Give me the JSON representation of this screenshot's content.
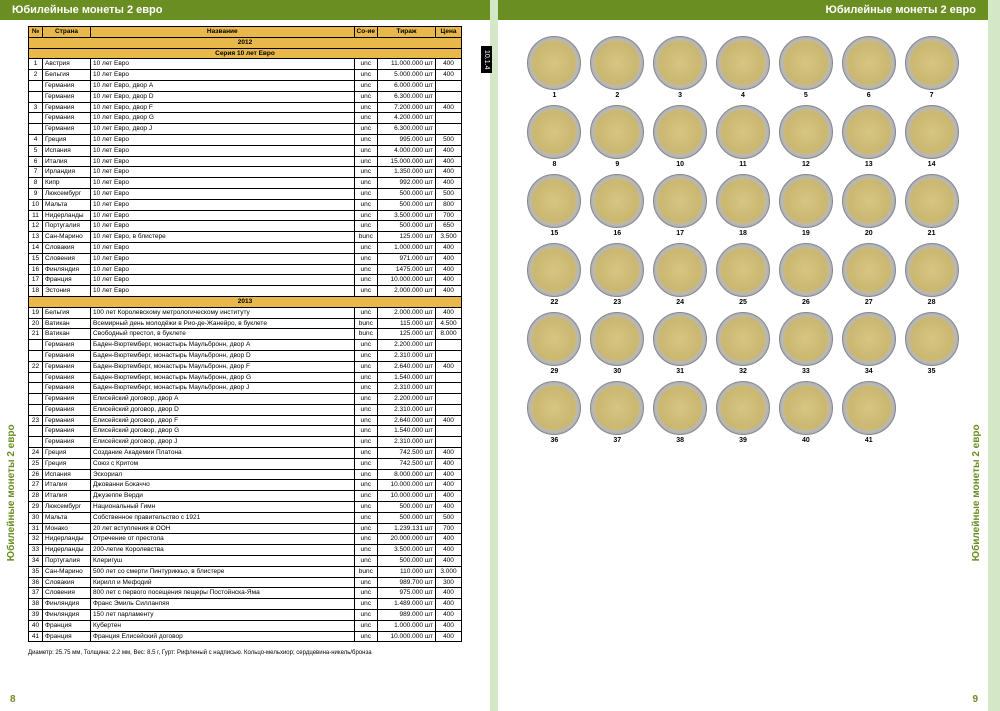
{
  "header_title": "Юбилейные монеты 2 евро",
  "side_label": "Юбилейные монеты 2 евро",
  "tab": "10.1.4",
  "page_left": "8",
  "page_right": "9",
  "footer": "Диаметр: 25.75 мм, Толщина: 2.2 мм, Вес: 8.5 г, Гурт: Рифленый с надписью. Кольцо-мельхиор; сердцевина-никель/бронза",
  "columns": [
    "№",
    "Страна",
    "Название",
    "Со-ие",
    "Тираж",
    "Цена"
  ],
  "years": {
    "2012": {
      "series": "Серия 10 лет Евро",
      "rows": [
        [
          "1",
          "Австрия",
          "10 лет Евро",
          "unc",
          "11.000.000 шт",
          "400"
        ],
        [
          "2",
          "Бельгия",
          "10 лет Евро",
          "unc",
          "5.000.000 шт",
          "400"
        ],
        [
          "",
          "Германия",
          "10 лет Евро, двор A",
          "unc",
          "6.000.000 шт",
          ""
        ],
        [
          "",
          "Германия",
          "10 лет Евро, двор D",
          "unc",
          "6.300.000 шт",
          ""
        ],
        [
          "3",
          "Германия",
          "10 лет Евро, двор F",
          "unc",
          "7.200.000 шт",
          "400"
        ],
        [
          "",
          "Германия",
          "10 лет Евро, двор G",
          "unc",
          "4.200.000 шт",
          ""
        ],
        [
          "",
          "Германия",
          "10 лет Евро, двор J",
          "unc",
          "6.300.000 шт",
          ""
        ],
        [
          "4",
          "Греция",
          "10 лет Евро",
          "unc",
          "995.000 шт",
          "500"
        ],
        [
          "5",
          "Испания",
          "10 лет Евро",
          "unc",
          "4.000.000 шт",
          "400"
        ],
        [
          "6",
          "Италия",
          "10 лет Евро",
          "unc",
          "15.000.000 шт",
          "400"
        ],
        [
          "7",
          "Ирландия",
          "10 лет Евро",
          "unc",
          "1.350.000 шт",
          "400"
        ],
        [
          "8",
          "Кипр",
          "10 лет Евро",
          "unc",
          "992.000 шт",
          "400"
        ],
        [
          "9",
          "Люксембург",
          "10 лет Евро",
          "unc",
          "500.000 шт",
          "500"
        ],
        [
          "10",
          "Мальта",
          "10 лет Евро",
          "unc",
          "500.000 шт",
          "800"
        ],
        [
          "11",
          "Нидерланды",
          "10 лет Евро",
          "unc",
          "3.500.000 шт",
          "700"
        ],
        [
          "12",
          "Португалия",
          "10 лет Евро",
          "unc",
          "500.000 шт",
          "650"
        ],
        [
          "13",
          "Сан-Марино",
          "10 лет Евро, в блистере",
          "bunc",
          "125.000 шт",
          "3.500"
        ],
        [
          "14",
          "Словакия",
          "10 лет Евро",
          "unc",
          "1.000.000 шт",
          "400"
        ],
        [
          "15",
          "Словения",
          "10 лет Евро",
          "unc",
          "971.000 шт",
          "400"
        ],
        [
          "16",
          "Финляндия",
          "10 лет Евро",
          "unc",
          "1475.000 шт",
          "400"
        ],
        [
          "17",
          "Франция",
          "10 лет Евро",
          "unc",
          "10.000.000 шт",
          "400"
        ],
        [
          "18",
          "Эстония",
          "10 лет Евро",
          "unc",
          "2.000.000 шт",
          "400"
        ]
      ]
    },
    "2013": {
      "series": null,
      "rows": [
        [
          "19",
          "Бельгия",
          "100 лет Королевскому метрологическому институту",
          "unc",
          "2.000.000 шт",
          "400"
        ],
        [
          "20",
          "Ватикан",
          "Всемирный день молодёжи в Рио-де-Жанейро, в буклете",
          "bunc",
          "115.000 шт",
          "4.500"
        ],
        [
          "21",
          "Ватикан",
          "Свободный престол, в буклете",
          "bunc",
          "125.000 шт",
          "8.000"
        ],
        [
          "",
          "Германия",
          "Баден-Вюртемберг, монастырь Маульбронн, двор A",
          "unc",
          "2.200.000 шт",
          ""
        ],
        [
          "",
          "Германия",
          "Баден-Вюртемберг, монастырь Маульбронн, двор D",
          "unc",
          "2.310.000 шт",
          ""
        ],
        [
          "22",
          "Германия",
          "Баден-Вюртемберг, монастырь Маульбронн, двор F",
          "unc",
          "2.640.000 шт",
          "400"
        ],
        [
          "",
          "Германия",
          "Баден-Вюртемберг, монастырь Маульбронн, двор G",
          "unc",
          "1.540.000 шт",
          ""
        ],
        [
          "",
          "Германия",
          "Баден-Вюртемберг, монастырь Маульбронн, двор J",
          "unc",
          "2.310.000 шт",
          ""
        ],
        [
          "",
          "Германия",
          "Елисейский договор, двор A",
          "unc",
          "2.200.000 шт",
          ""
        ],
        [
          "",
          "Германия",
          "Елисейский договор, двор D",
          "unc",
          "2.310.000 шт",
          ""
        ],
        [
          "23",
          "Германия",
          "Елисейский договор, двор F",
          "unc",
          "2.640.000 шт",
          "400"
        ],
        [
          "",
          "Германия",
          "Елисейский договор, двор G",
          "unc",
          "1.540.000 шт",
          ""
        ],
        [
          "",
          "Германия",
          "Елисейский договор, двор J",
          "unc",
          "2.310.000 шт",
          ""
        ],
        [
          "24",
          "Греция",
          "Создание Академии Платона",
          "unc",
          "742.500 шт",
          "400"
        ],
        [
          "25",
          "Греция",
          "Союз с Критом",
          "unc",
          "742.500 шт",
          "400"
        ],
        [
          "26",
          "Испания",
          "Эскориал",
          "unc",
          "8.000.000 шт",
          "400"
        ],
        [
          "27",
          "Италия",
          "Джованни Бокаччо",
          "unc",
          "10.000.000 шт",
          "400"
        ],
        [
          "28",
          "Италия",
          "Джузеппе Верди",
          "unc",
          "10.000.000 шт",
          "400"
        ],
        [
          "29",
          "Люксембург",
          "Национальный Гимн",
          "unc",
          "500.000 шт",
          "400"
        ],
        [
          "30",
          "Мальта",
          "Собственное правительство с 1921",
          "unc",
          "500.000 шт",
          "500"
        ],
        [
          "31",
          "Монако",
          "20 лет вступления в ООН",
          "unc",
          "1.239.131 шт",
          "700"
        ],
        [
          "32",
          "Нидерланды",
          "Отречение от престола",
          "unc",
          "20.000.000 шт",
          "400"
        ],
        [
          "33",
          "Нидерланды",
          "200-летие Королевства",
          "unc",
          "3.500.000 шт",
          "400"
        ],
        [
          "34",
          "Португалия",
          "Клеригуш",
          "unc",
          "500.000 шт",
          "400"
        ],
        [
          "35",
          "Сан-Марино",
          "500 лет со смерти Пинтуриккьо, в блистере",
          "bunc",
          "110.000 шт",
          "3.000"
        ],
        [
          "36",
          "Словакия",
          "Кирилл и Мефодий",
          "unc",
          "989.700 шт",
          "300"
        ],
        [
          "37",
          "Словения",
          "800 лет с первого посещения пещеры Постойнска-Яма",
          "unc",
          "975.000 шт",
          "400"
        ],
        [
          "38",
          "Финляндия",
          "Франс Эмиль Силланпяя",
          "unc",
          "1.489.000 шт",
          "400"
        ],
        [
          "39",
          "Финляндия",
          "150 лет парламенту",
          "unc",
          "989.000 шт",
          "400"
        ],
        [
          "40",
          "Франция",
          "Кубертен",
          "unc",
          "1.000.000 шт",
          "400"
        ],
        [
          "41",
          "Франция",
          "Франция Елисейский договор",
          "unc",
          "10.000.000 шт",
          "400"
        ]
      ]
    }
  },
  "coin_grid": {
    "rows": 6,
    "cols": 7,
    "count": 41,
    "skip_cells": [
      [
        5,
        6
      ]
    ]
  },
  "colors": {
    "page_bg": "#ffffff",
    "spread_bg": "#d4e8c7",
    "header": "#6b8e23",
    "th_bg": "#e8b84a",
    "border": "#000000"
  }
}
